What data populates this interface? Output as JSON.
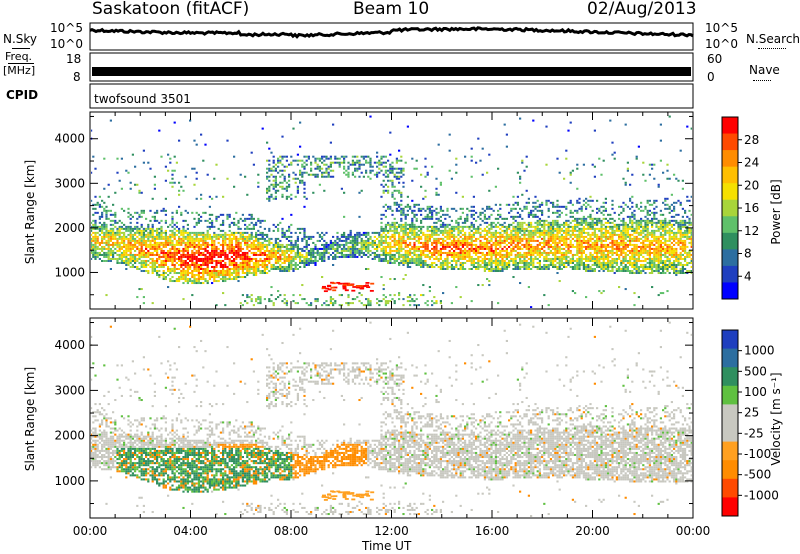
{
  "header": {
    "station": "Saskatoon (fitACF)",
    "beam": "Beam 10",
    "date": "02/Aug/2013"
  },
  "panels": {
    "nsky": {
      "left_label": "N.Sky",
      "right_label": "N.Search",
      "left_ticks": [
        "10^5",
        "10^0"
      ],
      "right_ticks": [
        "10^5",
        "10^0"
      ]
    },
    "freq": {
      "left_label_top": "Freq.",
      "left_label_bottom": "[MHz]",
      "left_ticks": [
        "18",
        "8"
      ],
      "right_ticks": [
        "60",
        "0"
      ],
      "right_label": "Nave"
    },
    "cpid": {
      "label": "CPID",
      "program": "twofsound 3501"
    }
  },
  "chart_data": [
    {
      "type": "heatmap",
      "name_field": "power",
      "ylabel": "Slant Range [km]",
      "y_ticks": [
        1000,
        2000,
        3000,
        4000
      ],
      "ylim": [
        180,
        4600
      ],
      "xlim": [
        0,
        24
      ],
      "colorbar": {
        "label": "Power [dB]",
        "ticks": [
          "28",
          "24",
          "20",
          "16",
          "12",
          "8",
          "4"
        ],
        "colors": [
          "#ff0000",
          "#ff4a00",
          "#ff8c00",
          "#ffbf00",
          "#f5e000",
          "#a8d53a",
          "#5fc06a",
          "#2f8f5f",
          "#2c6ea0",
          "#1f3fbf",
          "#0000ff"
        ]
      },
      "band_profile": [
        {
          "t": 0.0,
          "lo": 1250,
          "hi": 2150,
          "level": 0.55
        },
        {
          "t": 1.0,
          "lo": 1200,
          "hi": 2050,
          "level": 0.6
        },
        {
          "t": 2.0,
          "lo": 1000,
          "hi": 2000,
          "level": 0.65
        },
        {
          "t": 3.0,
          "lo": 800,
          "hi": 1950,
          "level": 0.75
        },
        {
          "t": 4.0,
          "lo": 700,
          "hi": 1900,
          "level": 0.85
        },
        {
          "t": 5.0,
          "lo": 750,
          "hi": 1850,
          "level": 0.9
        },
        {
          "t": 6.0,
          "lo": 850,
          "hi": 1900,
          "level": 0.85
        },
        {
          "t": 7.0,
          "lo": 950,
          "hi": 1700,
          "level": 0.7
        },
        {
          "t": 8.0,
          "lo": 1000,
          "hi": 1600,
          "level": 0.55
        },
        {
          "t": 9.0,
          "lo": 1200,
          "hi": 1500,
          "level": 0.3
        },
        {
          "t": 10.0,
          "lo": 1300,
          "hi": 1800,
          "level": 0.35
        },
        {
          "t": 11.0,
          "lo": 1300,
          "hi": 1900,
          "level": 0.4
        },
        {
          "t": 12.0,
          "lo": 1150,
          "hi": 2100,
          "level": 0.6
        },
        {
          "t": 14.0,
          "lo": 1050,
          "hi": 2000,
          "level": 0.75
        },
        {
          "t": 16.0,
          "lo": 1000,
          "hi": 2050,
          "level": 0.7
        },
        {
          "t": 18.0,
          "lo": 1050,
          "hi": 2150,
          "level": 0.65
        },
        {
          "t": 20.0,
          "lo": 1000,
          "hi": 2200,
          "level": 0.65
        },
        {
          "t": 22.0,
          "lo": 950,
          "hi": 2150,
          "level": 0.65
        },
        {
          "t": 24.0,
          "lo": 950,
          "hi": 2150,
          "level": 0.6
        }
      ]
    },
    {
      "type": "heatmap",
      "name_field": "velocity",
      "ylabel": "Slant Range [km]",
      "xlabel": "Time UT",
      "x_ticks": [
        "00:00",
        "04:00",
        "08:00",
        "12:00",
        "16:00",
        "20:00",
        "00:00"
      ],
      "y_ticks": [
        1000,
        2000,
        3000,
        4000
      ],
      "ylim": [
        180,
        4600
      ],
      "xlim": [
        0,
        24
      ],
      "colorbar": {
        "label": "Velocity [m s⁻¹]",
        "ticks": [
          "1000",
          "500",
          "100",
          "25",
          "-25",
          "-100",
          "-500",
          "-1000"
        ],
        "colors": [
          "#1f3fbf",
          "#2c6ea0",
          "#2f8f5f",
          "#5fc040",
          "#c8c8c0",
          "#c8c8c0",
          "#ffa020",
          "#ff8c00",
          "#ff4a00",
          "#ff0000"
        ]
      }
    }
  ]
}
